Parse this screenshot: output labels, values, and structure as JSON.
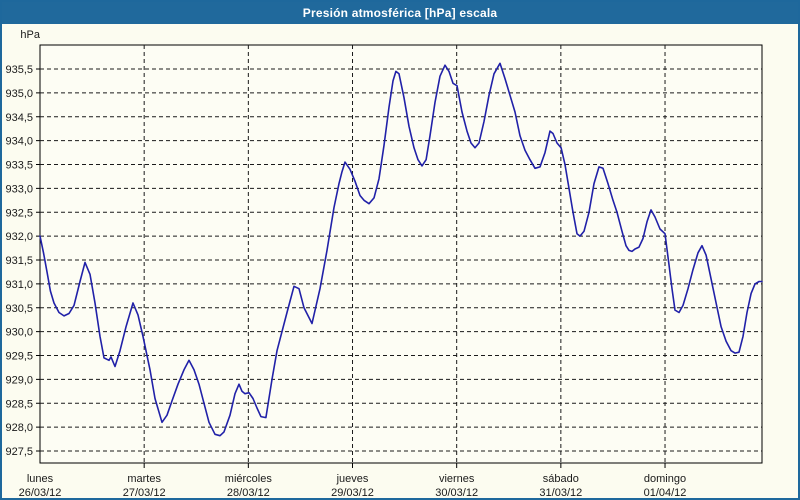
{
  "window": {
    "title": "Presión atmosférica [hPa] escala"
  },
  "colors": {
    "frame_blue": "#20699c",
    "background": "#fcfcf0",
    "plot_background": "#fdfdf4",
    "grid": "#1a1a1a",
    "series_blue": "#2121a8"
  },
  "chart_data": {
    "type": "line",
    "title": "Presión atmosférica [hPa] escala",
    "unit_label": "hPa",
    "ylabel": "hPa",
    "ylim": [
      927.25,
      936.0
    ],
    "grid": "dashed",
    "legend": "none",
    "y_tick_values": [
      935.5,
      935.0,
      934.5,
      934.0,
      933.5,
      933.0,
      932.5,
      932.0,
      931.5,
      931.0,
      930.5,
      930.0,
      929.5,
      929.0,
      928.5,
      928.0,
      927.5
    ],
    "y_tick_labels": [
      "935,5",
      "935,0",
      "934,5",
      "934,0",
      "933,5",
      "933,0",
      "932,5",
      "932,0",
      "931,5",
      "931,0",
      "930,5",
      "930,0",
      "929,5",
      "929,0",
      "928,5",
      "928,0",
      "927,5"
    ],
    "x_days": [
      {
        "weekday": "lunes",
        "date": "26/03/12"
      },
      {
        "weekday": "martes",
        "date": "27/03/12"
      },
      {
        "weekday": "miércoles",
        "date": "28/03/12"
      },
      {
        "weekday": "jueves",
        "date": "29/03/12"
      },
      {
        "weekday": "viernes",
        "date": "30/03/12"
      },
      {
        "weekday": "sábado",
        "date": "31/03/12"
      },
      {
        "weekday": "domingo",
        "date": "01/04/12"
      }
    ],
    "series": [
      {
        "name": "Presión atmosférica",
        "color": "#2121a8",
        "x_unit": "days_from_start",
        "points": [
          [
            0.0,
            932.0
          ],
          [
            0.034,
            931.65
          ],
          [
            0.067,
            931.25
          ],
          [
            0.1,
            930.85
          ],
          [
            0.134,
            930.6
          ],
          [
            0.182,
            930.4
          ],
          [
            0.23,
            930.33
          ],
          [
            0.278,
            930.38
          ],
          [
            0.326,
            930.55
          ],
          [
            0.384,
            931.05
          ],
          [
            0.432,
            931.45
          ],
          [
            0.48,
            931.2
          ],
          [
            0.528,
            930.6
          ],
          [
            0.576,
            929.9
          ],
          [
            0.614,
            929.45
          ],
          [
            0.662,
            929.4
          ],
          [
            0.682,
            929.47
          ],
          [
            0.72,
            929.27
          ],
          [
            0.768,
            929.6
          ],
          [
            0.826,
            930.1
          ],
          [
            0.893,
            930.6
          ],
          [
            0.941,
            930.35
          ],
          [
            0.989,
            929.9
          ],
          [
            1.008,
            929.7
          ],
          [
            1.056,
            929.2
          ],
          [
            1.104,
            928.6
          ],
          [
            1.171,
            928.1
          ],
          [
            1.219,
            928.25
          ],
          [
            1.267,
            928.55
          ],
          [
            1.325,
            928.9
          ],
          [
            1.382,
            929.2
          ],
          [
            1.43,
            929.4
          ],
          [
            1.478,
            929.2
          ],
          [
            1.526,
            928.9
          ],
          [
            1.574,
            928.5
          ],
          [
            1.622,
            928.1
          ],
          [
            1.68,
            927.85
          ],
          [
            1.728,
            927.82
          ],
          [
            1.766,
            927.9
          ],
          [
            1.824,
            928.25
          ],
          [
            1.872,
            928.7
          ],
          [
            1.91,
            928.9
          ],
          [
            1.939,
            928.75
          ],
          [
            1.968,
            928.7
          ],
          [
            2.006,
            928.72
          ],
          [
            2.045,
            928.6
          ],
          [
            2.083,
            928.4
          ],
          [
            2.121,
            928.22
          ],
          [
            2.169,
            928.2
          ],
          [
            2.227,
            929.0
          ],
          [
            2.275,
            929.6
          ],
          [
            2.371,
            930.4
          ],
          [
            2.438,
            930.95
          ],
          [
            2.486,
            930.9
          ],
          [
            2.534,
            930.5
          ],
          [
            2.611,
            930.17
          ],
          [
            2.688,
            930.9
          ],
          [
            2.755,
            931.7
          ],
          [
            2.822,
            932.6
          ],
          [
            2.87,
            933.1
          ],
          [
            2.899,
            933.35
          ],
          [
            2.928,
            933.55
          ],
          [
            2.976,
            933.4
          ],
          [
            3.024,
            933.15
          ],
          [
            3.072,
            932.85
          ],
          [
            3.11,
            932.75
          ],
          [
            3.158,
            932.68
          ],
          [
            3.206,
            932.8
          ],
          [
            3.254,
            933.2
          ],
          [
            3.302,
            933.9
          ],
          [
            3.35,
            934.7
          ],
          [
            3.389,
            935.25
          ],
          [
            3.417,
            935.45
          ],
          [
            3.446,
            935.4
          ],
          [
            3.494,
            934.9
          ],
          [
            3.542,
            934.3
          ],
          [
            3.59,
            933.85
          ],
          [
            3.629,
            933.6
          ],
          [
            3.667,
            933.47
          ],
          [
            3.706,
            933.6
          ],
          [
            3.744,
            934.1
          ],
          [
            3.792,
            934.8
          ],
          [
            3.84,
            935.35
          ],
          [
            3.888,
            935.58
          ],
          [
            3.926,
            935.45
          ],
          [
            3.965,
            935.2
          ],
          [
            4.003,
            935.15
          ],
          [
            4.051,
            934.6
          ],
          [
            4.099,
            934.2
          ],
          [
            4.137,
            933.95
          ],
          [
            4.176,
            933.85
          ],
          [
            4.214,
            933.95
          ],
          [
            4.262,
            934.4
          ],
          [
            4.31,
            934.95
          ],
          [
            4.358,
            935.4
          ],
          [
            4.416,
            935.62
          ],
          [
            4.464,
            935.3
          ],
          [
            4.512,
            934.95
          ],
          [
            4.56,
            934.6
          ],
          [
            4.608,
            934.1
          ],
          [
            4.656,
            933.8
          ],
          [
            4.704,
            933.6
          ],
          [
            4.752,
            933.42
          ],
          [
            4.8,
            933.45
          ],
          [
            4.848,
            933.75
          ],
          [
            4.896,
            934.2
          ],
          [
            4.925,
            934.15
          ],
          [
            4.963,
            933.95
          ],
          [
            5.002,
            933.85
          ],
          [
            5.04,
            933.5
          ],
          [
            5.078,
            933.0
          ],
          [
            5.117,
            932.5
          ],
          [
            5.155,
            932.05
          ],
          [
            5.184,
            932.0
          ],
          [
            5.222,
            932.1
          ],
          [
            5.27,
            932.5
          ],
          [
            5.318,
            933.1
          ],
          [
            5.366,
            933.45
          ],
          [
            5.405,
            933.42
          ],
          [
            5.453,
            933.1
          ],
          [
            5.501,
            932.75
          ],
          [
            5.539,
            932.5
          ],
          [
            5.587,
            932.1
          ],
          [
            5.625,
            931.8
          ],
          [
            5.654,
            931.7
          ],
          [
            5.683,
            931.68
          ],
          [
            5.712,
            931.73
          ],
          [
            5.75,
            931.77
          ],
          [
            5.789,
            931.95
          ],
          [
            5.827,
            932.3
          ],
          [
            5.865,
            932.55
          ],
          [
            5.904,
            932.4
          ],
          [
            5.952,
            932.15
          ],
          [
            6.0,
            932.05
          ],
          [
            6.038,
            931.4
          ],
          [
            6.067,
            930.9
          ],
          [
            6.096,
            930.45
          ],
          [
            6.134,
            930.4
          ],
          [
            6.173,
            930.55
          ],
          [
            6.221,
            930.9
          ],
          [
            6.269,
            931.3
          ],
          [
            6.317,
            931.65
          ],
          [
            6.355,
            931.8
          ],
          [
            6.394,
            931.6
          ],
          [
            6.442,
            931.1
          ],
          [
            6.49,
            930.6
          ],
          [
            6.538,
            930.1
          ],
          [
            6.586,
            929.8
          ],
          [
            6.634,
            929.6
          ],
          [
            6.672,
            929.55
          ],
          [
            6.71,
            929.57
          ],
          [
            6.749,
            929.9
          ],
          [
            6.787,
            930.4
          ],
          [
            6.826,
            930.8
          ],
          [
            6.864,
            931.0
          ],
          [
            6.903,
            931.05
          ],
          [
            6.931,
            931.05
          ]
        ]
      }
    ]
  }
}
